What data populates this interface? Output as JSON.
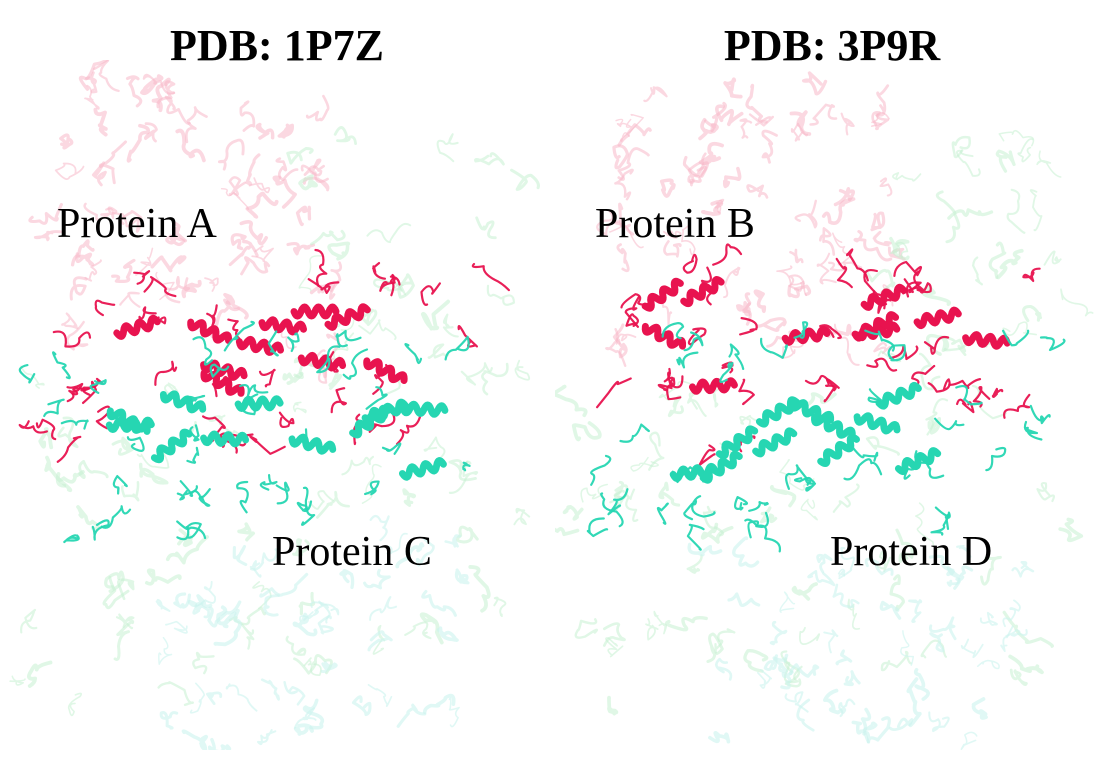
{
  "panels": [
    {
      "title": "PDB: 1P7Z",
      "label_top": "Protein A",
      "label_bottom": "Protein C"
    },
    {
      "title": "PDB: 3P9R",
      "label_top": "Protein B",
      "label_bottom": "Protein D"
    }
  ],
  "colors": {
    "chain_1_interface": "#e8134f",
    "chain_1_faded": "#f7b8c8",
    "chain_2_interface": "#26d6b2",
    "chain_2_faded": "#c6f0d2",
    "chain_3_faded": "#ccf3ef"
  }
}
